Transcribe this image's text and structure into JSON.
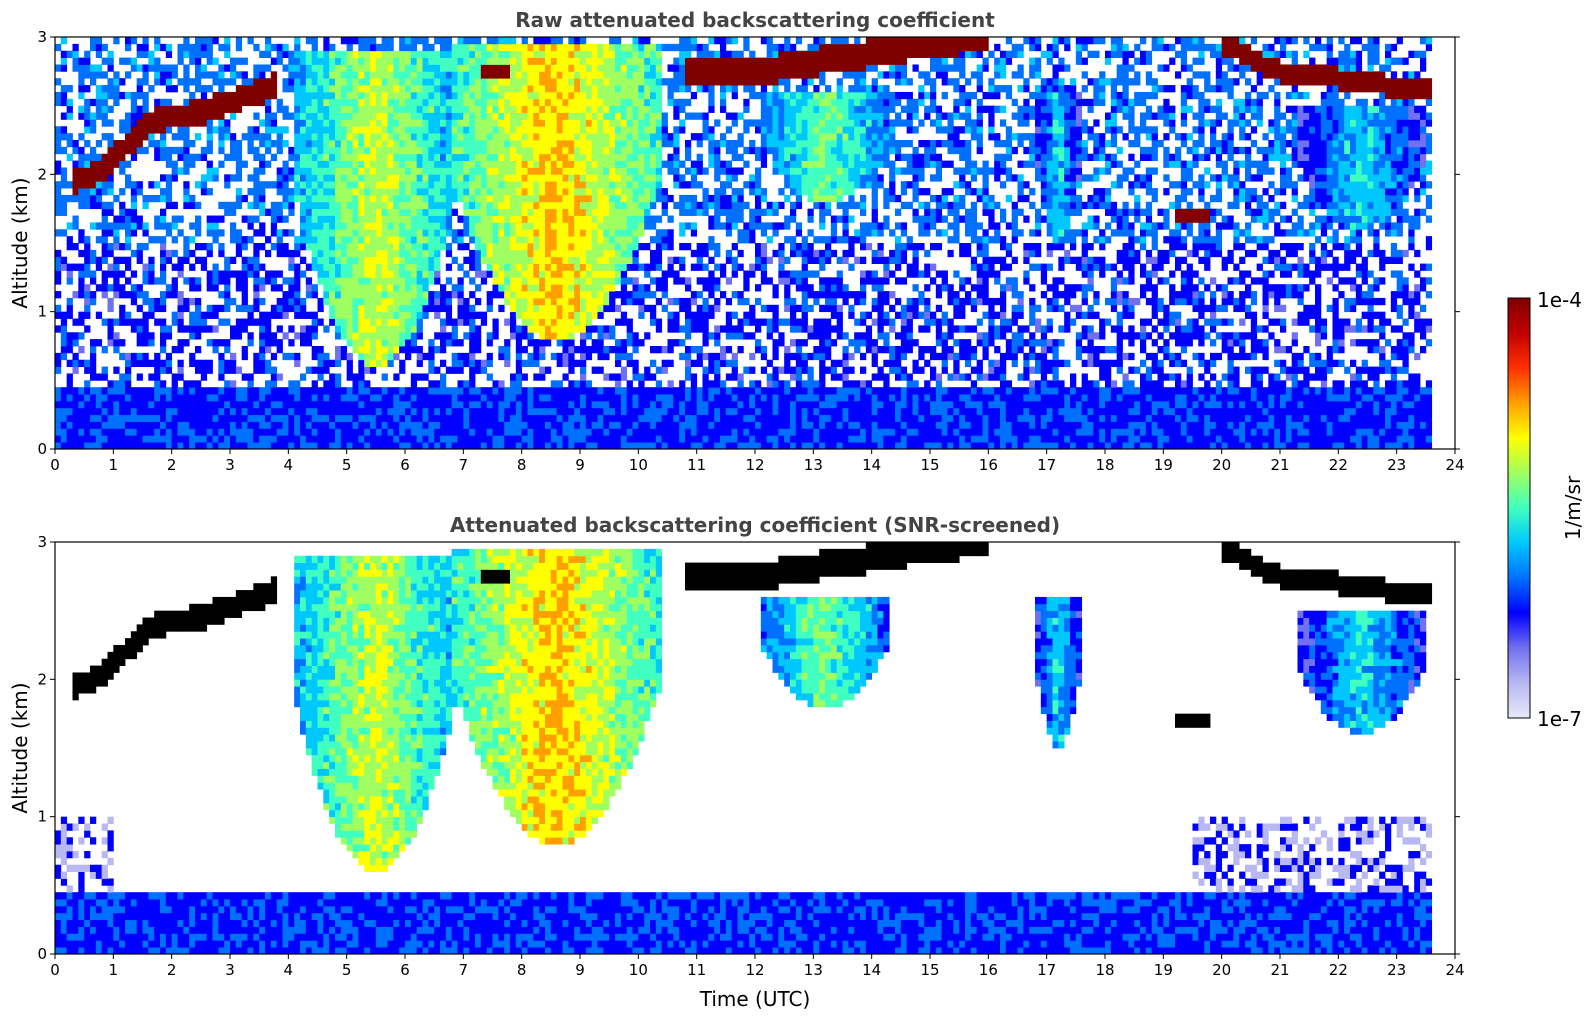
{
  "chart_data": [
    {
      "type": "heatmap",
      "title": "Raw attenuated backscattering coefficient",
      "xlabel": "",
      "ylabel": "Altitude (km)",
      "xlim": [
        0,
        24
      ],
      "ylim": [
        0,
        3
      ],
      "x_ticks": [
        "0",
        "1",
        "2",
        "3",
        "4",
        "5",
        "6",
        "7",
        "8",
        "9",
        "10",
        "11",
        "12",
        "13",
        "14",
        "15",
        "16",
        "17",
        "18",
        "19",
        "20",
        "21",
        "22",
        "23",
        "24"
      ],
      "y_ticks": [
        "0",
        "1",
        "2",
        "3"
      ],
      "colorscale": "jet",
      "features": [
        {
          "kind": "boundary-layer",
          "x_start": 0,
          "x_end": 23.6,
          "top_km": 0.45,
          "level": 0.3
        },
        {
          "kind": "cloud-layer",
          "points": [
            [
              0.3,
              1.95
            ],
            [
              0.7,
              2.0
            ],
            [
              1.7,
              2.4
            ],
            [
              2.5,
              2.45
            ],
            [
              3.8,
              2.65
            ]
          ],
          "thickness_km": 0.18
        },
        {
          "kind": "cloud-layer",
          "points": [
            [
              7.3,
              2.75
            ],
            [
              7.8,
              2.75
            ]
          ],
          "thickness_km": 0.1
        },
        {
          "kind": "cloud-layer",
          "points": [
            [
              10.8,
              2.75
            ],
            [
              12.0,
              2.75
            ],
            [
              13.5,
              2.85
            ],
            [
              15.0,
              2.95
            ],
            [
              16.0,
              3.0
            ]
          ],
          "thickness_km": 0.2
        },
        {
          "kind": "cloud-layer",
          "points": [
            [
              20.0,
              2.95
            ],
            [
              21.0,
              2.75
            ],
            [
              22.0,
              2.7
            ],
            [
              23.6,
              2.6
            ]
          ],
          "thickness_km": 0.15
        },
        {
          "kind": "cloud-layer",
          "points": [
            [
              19.2,
              1.7
            ],
            [
              19.8,
              1.7
            ]
          ],
          "thickness_km": 0.12
        },
        {
          "kind": "aerosol-plume",
          "x_center": 5.5,
          "x_width": 2.8,
          "y_bottom_km": 0.6,
          "y_top_km": 2.9,
          "level": 0.62
        },
        {
          "kind": "aerosol-plume",
          "x_center": 8.6,
          "x_width": 3.6,
          "y_bottom_km": 0.8,
          "y_top_km": 2.95,
          "level": 0.7
        },
        {
          "kind": "aerosol-plume",
          "x_center": 13.2,
          "x_width": 2.2,
          "y_bottom_km": 1.8,
          "y_top_km": 2.6,
          "level": 0.55
        },
        {
          "kind": "aerosol-plume",
          "x_center": 17.2,
          "x_width": 0.8,
          "y_bottom_km": 1.5,
          "y_top_km": 2.6,
          "level": 0.45
        },
        {
          "kind": "aerosol-plume",
          "x_center": 22.4,
          "x_width": 2.2,
          "y_bottom_km": 1.6,
          "y_top_km": 2.5,
          "level": 0.45
        }
      ]
    },
    {
      "type": "heatmap",
      "title": "Attenuated backscattering coefficient (SNR-screened)",
      "xlabel": "Time (UTC)",
      "ylabel": "Altitude (km)",
      "xlim": [
        0,
        24
      ],
      "ylim": [
        0,
        3
      ],
      "x_ticks": [
        "0",
        "1",
        "2",
        "3",
        "4",
        "5",
        "6",
        "7",
        "8",
        "9",
        "10",
        "11",
        "12",
        "13",
        "14",
        "15",
        "16",
        "17",
        "18",
        "19",
        "20",
        "21",
        "22",
        "23",
        "24"
      ],
      "y_ticks": [
        "0",
        "1",
        "2",
        "3"
      ],
      "colorscale": "jet",
      "screening": "SNR"
    }
  ],
  "colorbar": {
    "label": "1/m/sr",
    "max_label": "1e-4",
    "min_label": "1e-7",
    "colors": [
      "#e8e8fa",
      "#b8b8f2",
      "#7070f0",
      "#0000ff",
      "#0070ff",
      "#00c8ff",
      "#40ffc0",
      "#a0ff60",
      "#ffff00",
      "#ffa000",
      "#ff3000",
      "#c00000",
      "#800000"
    ]
  }
}
